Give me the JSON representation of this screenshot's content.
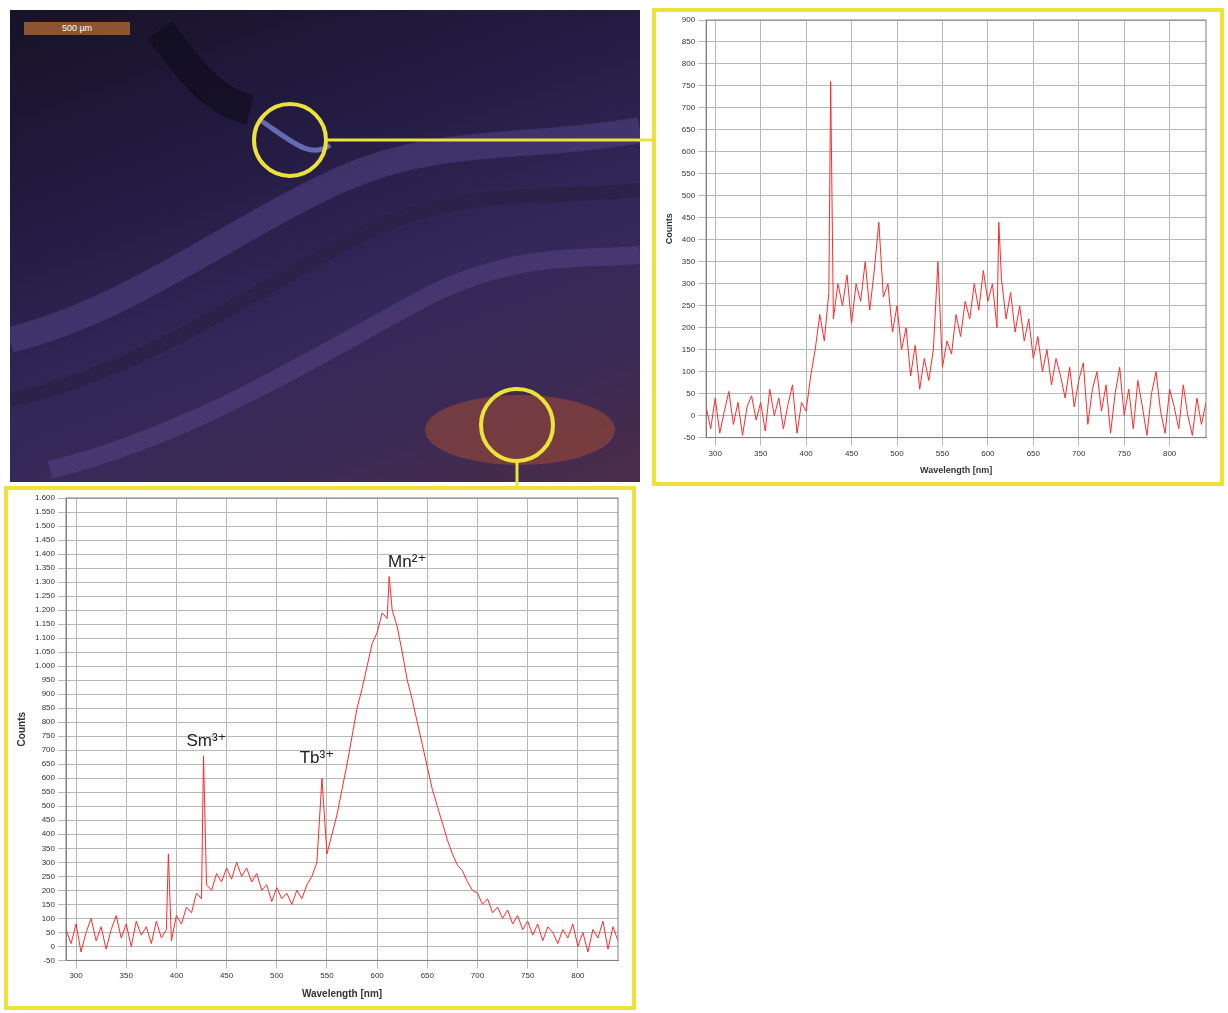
{
  "image_panel": {
    "scale_bar": "500 µm"
  },
  "chart_data": [
    {
      "type": "line",
      "x_label": "Wavelength [nm]",
      "y_label": "Counts",
      "color": "#ff2a2a",
      "grid": true,
      "xlim": [
        290,
        840
      ],
      "xticks": [
        300,
        350,
        400,
        450,
        500,
        550,
        600,
        650,
        700,
        750,
        800
      ],
      "ylim": [
        -50,
        900
      ],
      "yticks": [
        -50,
        0,
        50,
        100,
        150,
        200,
        250,
        300,
        350,
        400,
        450,
        500,
        550,
        600,
        650,
        700,
        750,
        800,
        850,
        900
      ],
      "x": [
        290,
        295,
        300,
        305,
        310,
        315,
        320,
        325,
        330,
        335,
        340,
        345,
        350,
        355,
        360,
        365,
        370,
        375,
        380,
        385,
        390,
        395,
        400,
        405,
        410,
        415,
        420,
        425,
        427,
        430,
        435,
        440,
        445,
        450,
        455,
        460,
        465,
        470,
        475,
        480,
        485,
        490,
        495,
        500,
        505,
        510,
        515,
        520,
        525,
        530,
        535,
        540,
        545,
        550,
        555,
        560,
        565,
        570,
        575,
        580,
        585,
        590,
        595,
        600,
        605,
        610,
        612,
        615,
        620,
        625,
        630,
        635,
        640,
        645,
        650,
        655,
        660,
        665,
        670,
        675,
        680,
        685,
        690,
        695,
        700,
        705,
        710,
        715,
        720,
        725,
        730,
        735,
        740,
        745,
        750,
        755,
        760,
        765,
        770,
        775,
        780,
        785,
        790,
        795,
        800,
        805,
        810,
        815,
        820,
        825,
        830,
        835,
        840
      ],
      "values": [
        20,
        -30,
        40,
        -40,
        10,
        55,
        -20,
        30,
        -45,
        20,
        45,
        -10,
        30,
        -35,
        60,
        0,
        40,
        -30,
        25,
        70,
        -40,
        30,
        10,
        90,
        150,
        230,
        170,
        280,
        760,
        220,
        300,
        250,
        320,
        210,
        300,
        260,
        350,
        240,
        330,
        440,
        270,
        300,
        190,
        250,
        150,
        200,
        90,
        160,
        60,
        130,
        80,
        150,
        350,
        110,
        170,
        140,
        230,
        180,
        260,
        220,
        300,
        240,
        330,
        260,
        300,
        200,
        440,
        310,
        220,
        280,
        190,
        250,
        170,
        220,
        130,
        180,
        100,
        150,
        70,
        130,
        90,
        40,
        110,
        20,
        80,
        120,
        -20,
        60,
        100,
        10,
        70,
        -40,
        50,
        110,
        0,
        60,
        -30,
        80,
        20,
        -45,
        50,
        100,
        10,
        -40,
        60,
        20,
        -30,
        70,
        0,
        -45,
        40,
        -20,
        30
      ]
    },
    {
      "type": "line",
      "x_label": "Wavelength [nm]",
      "y_label": "Counts",
      "color": "#ff2a2a",
      "grid": true,
      "xlim": [
        290,
        840
      ],
      "xticks": [
        300,
        350,
        400,
        450,
        500,
        550,
        600,
        650,
        700,
        750,
        800
      ],
      "ylim": [
        -50,
        1600
      ],
      "yticks": [
        -50,
        0,
        50,
        100,
        150,
        200,
        250,
        300,
        350,
        400,
        450,
        500,
        550,
        600,
        650,
        700,
        750,
        800,
        850,
        900,
        950,
        {
          "value": 1000,
          "label": "1.000"
        },
        {
          "value": 1050,
          "label": "1.050"
        },
        {
          "value": 1100,
          "label": "1.100"
        },
        {
          "value": 1150,
          "label": "1.150"
        },
        {
          "value": 1200,
          "label": "1.200"
        },
        {
          "value": 1250,
          "label": "1.250"
        },
        {
          "value": 1300,
          "label": "1.300"
        },
        {
          "value": 1350,
          "label": "1.350"
        },
        {
          "value": 1400,
          "label": "1.400"
        },
        {
          "value": 1450,
          "label": "1.450"
        },
        {
          "value": 1500,
          "label": "1.500"
        },
        {
          "value": 1550,
          "label": "1.550"
        },
        {
          "value": 1600,
          "label": "1.600"
        }
      ],
      "x": [
        290,
        295,
        300,
        305,
        310,
        315,
        320,
        325,
        330,
        335,
        340,
        345,
        350,
        355,
        360,
        365,
        370,
        375,
        380,
        385,
        390,
        392,
        395,
        400,
        405,
        410,
        415,
        420,
        425,
        427,
        430,
        435,
        440,
        445,
        450,
        455,
        460,
        465,
        470,
        475,
        480,
        485,
        490,
        495,
        500,
        505,
        510,
        515,
        520,
        525,
        530,
        535,
        540,
        545,
        550,
        555,
        560,
        565,
        570,
        575,
        580,
        585,
        590,
        595,
        600,
        605,
        610,
        612,
        615,
        620,
        625,
        630,
        635,
        640,
        645,
        650,
        655,
        660,
        665,
        670,
        675,
        680,
        685,
        690,
        695,
        700,
        705,
        710,
        715,
        720,
        725,
        730,
        735,
        740,
        745,
        750,
        755,
        760,
        765,
        770,
        775,
        780,
        785,
        790,
        795,
        800,
        805,
        810,
        815,
        820,
        825,
        830,
        835,
        840
      ],
      "values": [
        60,
        10,
        80,
        -20,
        50,
        100,
        20,
        70,
        -10,
        60,
        110,
        30,
        80,
        0,
        90,
        40,
        70,
        10,
        90,
        30,
        60,
        330,
        20,
        110,
        80,
        140,
        120,
        190,
        170,
        680,
        220,
        200,
        260,
        230,
        280,
        240,
        300,
        250,
        280,
        230,
        260,
        200,
        220,
        160,
        210,
        170,
        190,
        150,
        200,
        170,
        220,
        250,
        300,
        600,
        330,
        400,
        470,
        560,
        650,
        750,
        850,
        920,
        1000,
        1080,
        1120,
        1190,
        1170,
        1320,
        1200,
        1140,
        1050,
        950,
        880,
        800,
        720,
        640,
        560,
        500,
        440,
        380,
        330,
        290,
        270,
        230,
        200,
        190,
        150,
        170,
        120,
        140,
        100,
        130,
        80,
        110,
        60,
        90,
        40,
        80,
        20,
        70,
        50,
        10,
        60,
        30,
        80,
        0,
        50,
        -20,
        60,
        30,
        90,
        -10,
        70,
        20
      ],
      "annotations": [
        {
          "text": "Sm³⁺",
          "x": 430,
          "y": 700
        },
        {
          "text": "Tb³⁺",
          "x": 540,
          "y": 640
        },
        {
          "text": "Mn²⁺",
          "x": 630,
          "y": 1340
        }
      ]
    }
  ]
}
